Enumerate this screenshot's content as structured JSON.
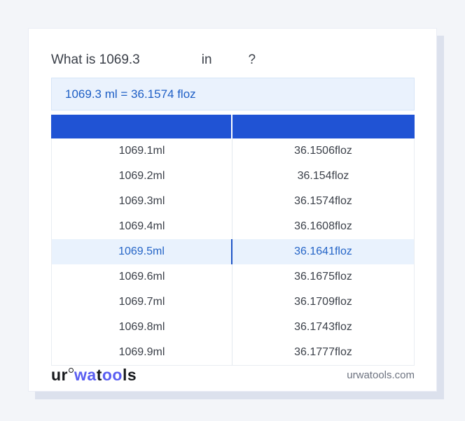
{
  "question": {
    "prefix": "What is 1069.3",
    "connector": "in",
    "mark": "?"
  },
  "result": {
    "text": "1069.3 ml = 36.1574 floz"
  },
  "table": {
    "header": {
      "col1": "",
      "col2": ""
    },
    "rows": [
      {
        "ml": "1069.1ml",
        "floz": "36.1506floz",
        "highlighted": false
      },
      {
        "ml": "1069.2ml",
        "floz": "36.154floz",
        "highlighted": false
      },
      {
        "ml": "1069.3ml",
        "floz": "36.1574floz",
        "highlighted": false
      },
      {
        "ml": "1069.4ml",
        "floz": "36.1608floz",
        "highlighted": false
      },
      {
        "ml": "1069.5ml",
        "floz": "36.1641floz",
        "highlighted": true
      },
      {
        "ml": "1069.6ml",
        "floz": "36.1675floz",
        "highlighted": false
      },
      {
        "ml": "1069.7ml",
        "floz": "36.1709floz",
        "highlighted": false
      },
      {
        "ml": "1069.8ml",
        "floz": "36.1743floz",
        "highlighted": false
      },
      {
        "ml": "1069.9ml",
        "floz": "36.1777floz",
        "highlighted": false
      }
    ]
  },
  "footer": {
    "logo": {
      "part1": "ur",
      "part2": "wa",
      "part3": "t",
      "part4": "oo",
      "part5": "ls"
    },
    "site": "urwatools.com"
  },
  "colors": {
    "page_background": "#f3f5f9",
    "card_background": "#ffffff",
    "card_shadow": "#dce1ed",
    "header_blue": "#2053d4",
    "result_box_background": "#eaf2fd",
    "result_box_border": "#d6e5f8",
    "result_text_blue": "#1d5ec5",
    "highlight_row_background": "#e9f2fd",
    "highlight_text_blue": "#2565c7",
    "highlight_divider_blue": "#1e55c6",
    "body_text": "#3b4049",
    "footer_domain_gray": "#6d7380",
    "logo_dark": "#17191d",
    "logo_blue": "#5a5ef1"
  }
}
